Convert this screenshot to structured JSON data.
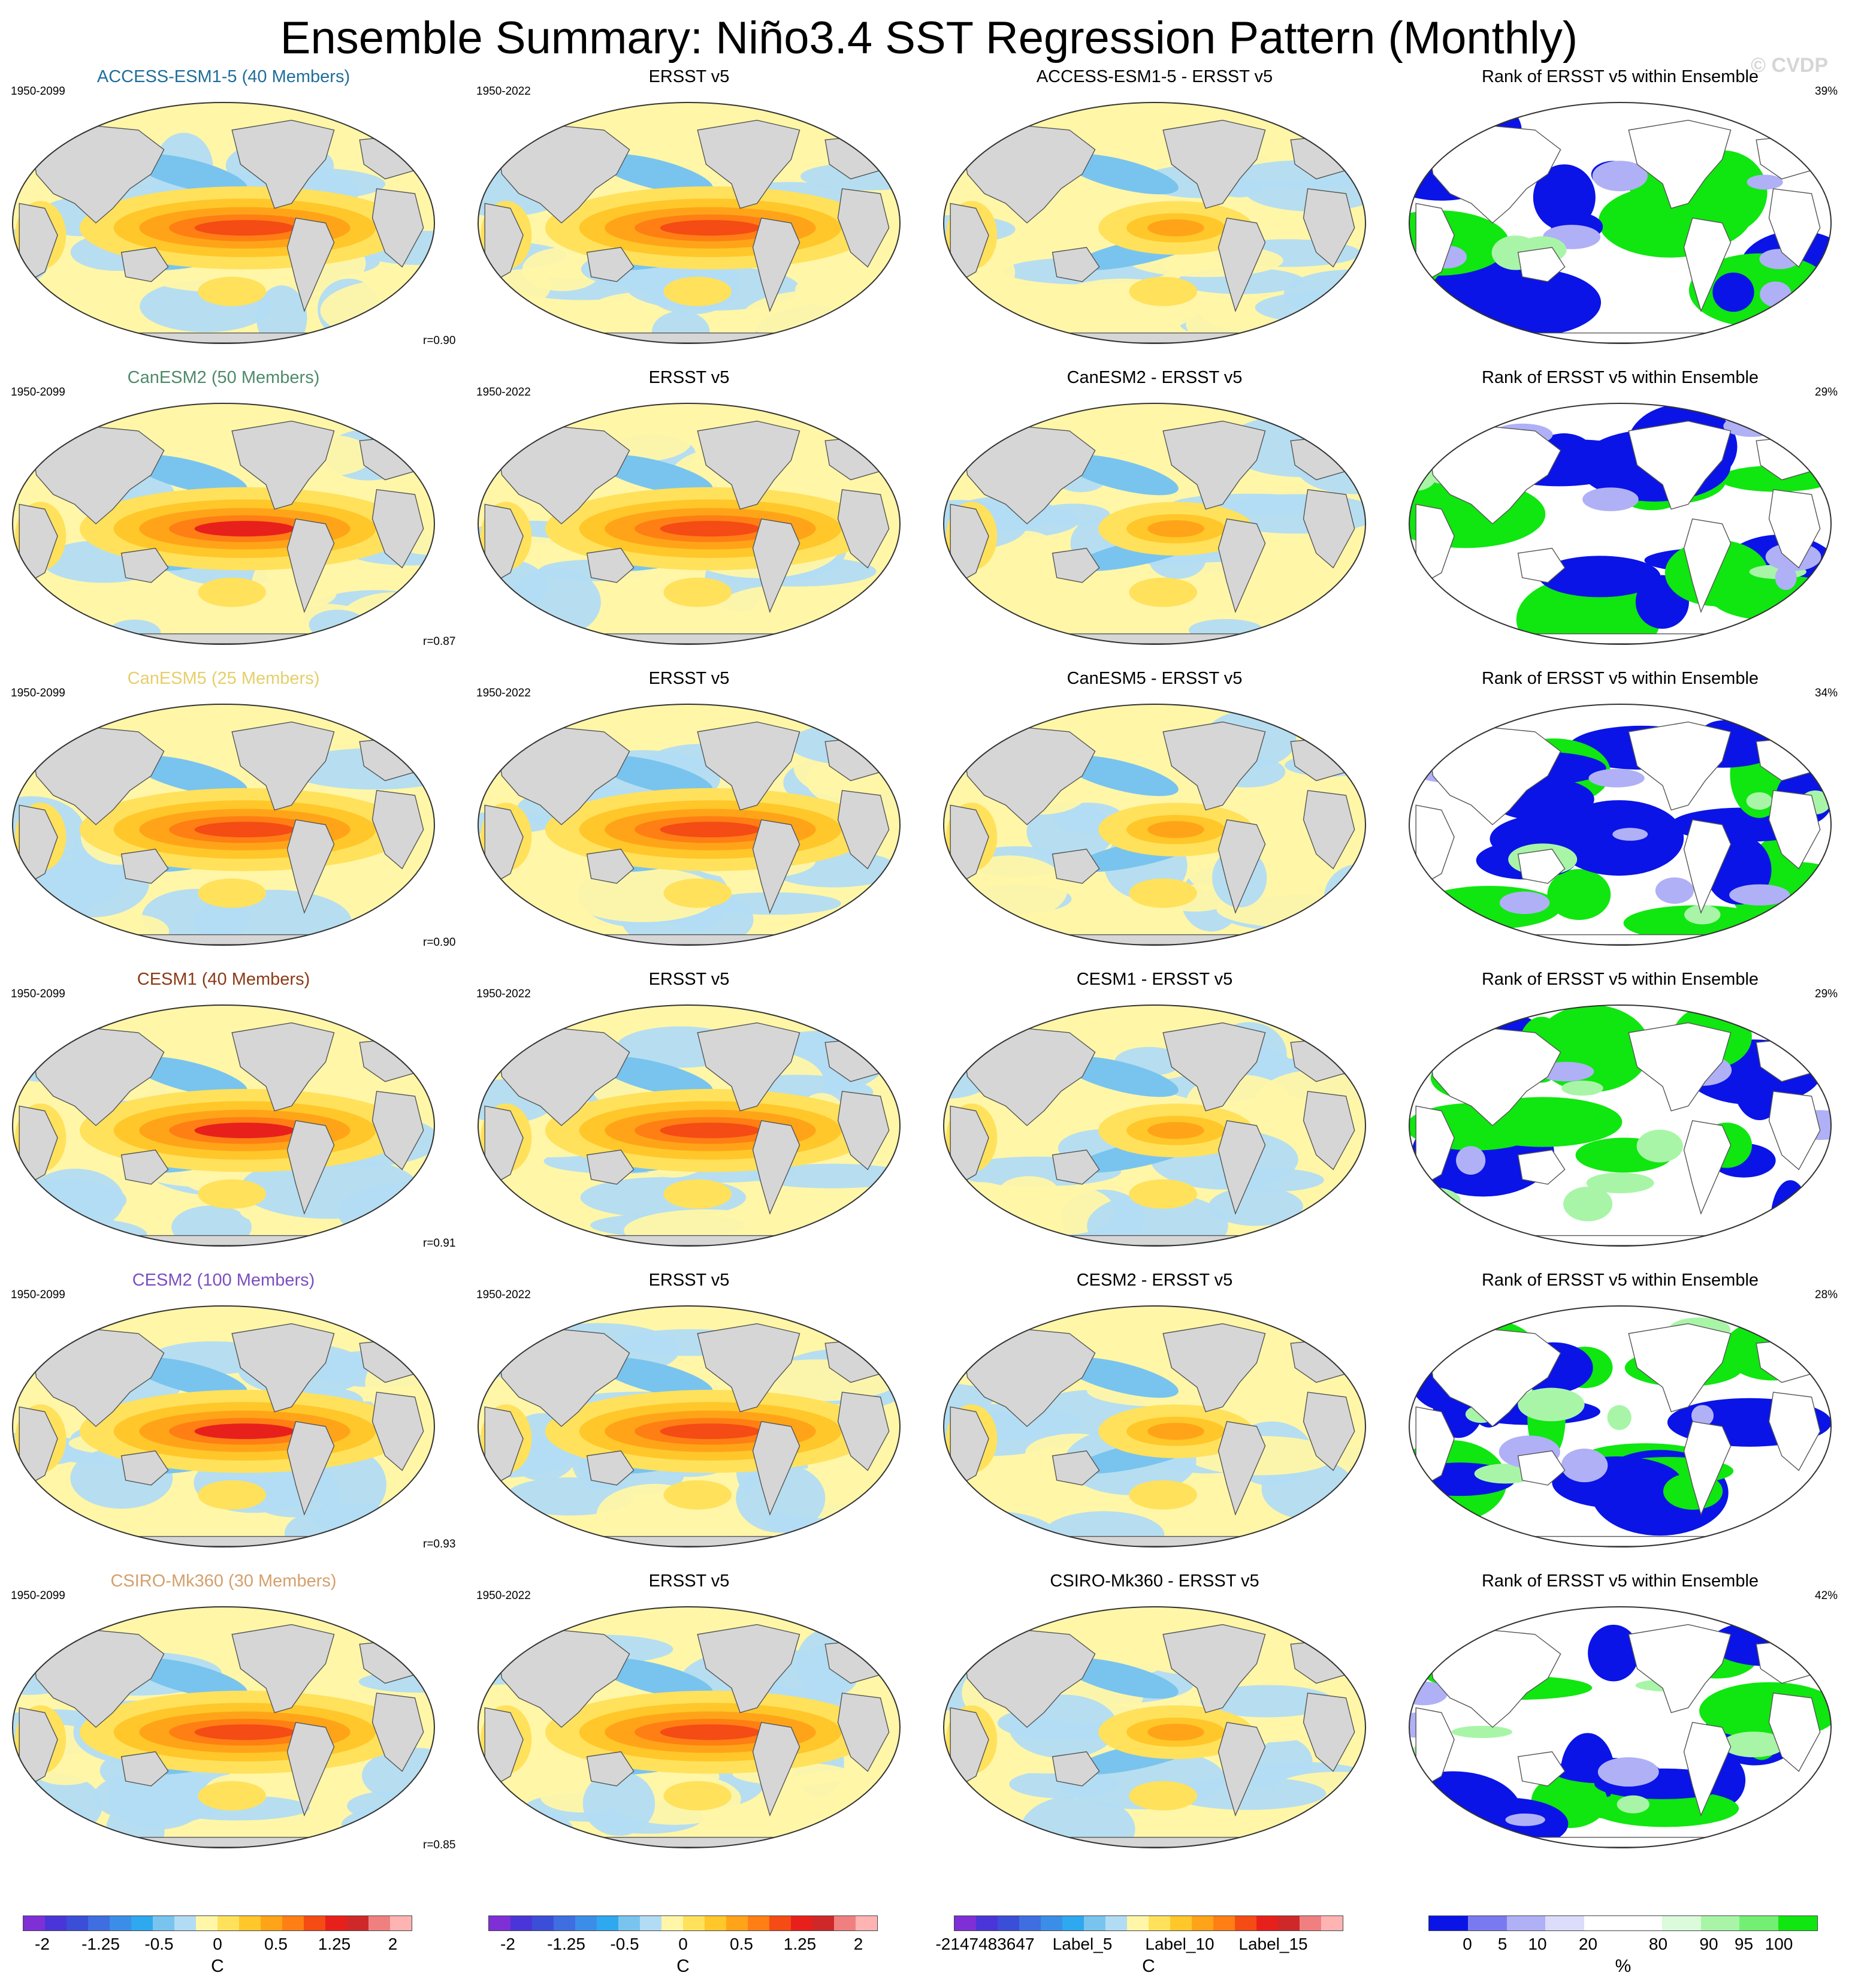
{
  "title": "Ensemble Summary: Niño3.4 SST Regression Pattern (Monthly)",
  "credit": "© CVDP",
  "obs_title": "ERSST v5",
  "rank_title": "Rank of ERSST v5 within Ensemble",
  "rows": [
    {
      "model_title": "ACCESS-ESM1-5 (40 Members)",
      "model_color": "#1f6e9a",
      "model_years": "1950-2099",
      "obs_years": "1950-2022",
      "diff_title": "ACCESS-ESM1-5 - ERSST v5",
      "r": "r=0.90",
      "rank_pct": "39%"
    },
    {
      "model_title": "CanESM2 (50 Members)",
      "model_color": "#4f8a6a",
      "model_years": "1950-2099",
      "obs_years": "1950-2022",
      "diff_title": "CanESM2 - ERSST v5",
      "r": "r=0.87",
      "rank_pct": "29%"
    },
    {
      "model_title": "CanESM5 (25 Members)",
      "model_color": "#e6cf6a",
      "model_years": "1950-2099",
      "obs_years": "1950-2022",
      "diff_title": "CanESM5 - ERSST v5",
      "r": "r=0.90",
      "rank_pct": "34%"
    },
    {
      "model_title": "CESM1 (40 Members)",
      "model_color": "#8b3a16",
      "model_years": "1950-2099",
      "obs_years": "1950-2022",
      "diff_title": "CESM1 - ERSST v5",
      "r": "r=0.91",
      "rank_pct": "29%"
    },
    {
      "model_title": "CESM2 (100 Members)",
      "model_color": "#7b4fc1",
      "model_years": "1950-2099",
      "obs_years": "1950-2022",
      "diff_title": "CESM2 - ERSST v5",
      "r": "r=0.93",
      "rank_pct": "28%"
    },
    {
      "model_title": "CSIRO-Mk360 (30 Members)",
      "model_color": "#d4a06c",
      "model_years": "1950-2099",
      "obs_years": "1950-2022",
      "diff_title": "CSIRO-Mk360 - ERSST v5",
      "r": "r=0.85",
      "rank_pct": "42%"
    }
  ],
  "colorbars": [
    {
      "labels": [
        "-2",
        "-1.25",
        "-0.5",
        "0",
        "0.5",
        "1.25",
        "2"
      ],
      "unit": "C",
      "colors": [
        "#7e2fd6",
        "#4a35d9",
        "#3a4ed8",
        "#3f6ee0",
        "#3b8ee8",
        "#2ea8ef",
        "#79c4ee",
        "#b2dcf3",
        "#fff6a8",
        "#ffe15c",
        "#ffc72a",
        "#ffa418",
        "#ff7f14",
        "#f54b14",
        "#e8201c",
        "#cf2828",
        "#f08080",
        "#ffb4b4"
      ]
    },
    {
      "labels": [
        "-2",
        "-1.25",
        "-0.5",
        "0",
        "0.5",
        "1.25",
        "2"
      ],
      "unit": "C",
      "colors": [
        "#7e2fd6",
        "#4a35d9",
        "#3a4ed8",
        "#3f6ee0",
        "#3b8ee8",
        "#2ea8ef",
        "#79c4ee",
        "#b2dcf3",
        "#fff6a8",
        "#ffe15c",
        "#ffc72a",
        "#ffa418",
        "#ff7f14",
        "#f54b14",
        "#e8201c",
        "#cf2828",
        "#f08080",
        "#ffb4b4"
      ]
    },
    {
      "labels": [
        "-2147483647",
        "Label_5",
        "Label_10",
        "Label_15"
      ],
      "unit": "C",
      "colors": [
        "#7e2fd6",
        "#4a35d9",
        "#3a4ed8",
        "#3f6ee0",
        "#3b8ee8",
        "#2ea8ef",
        "#79c4ee",
        "#b2dcf3",
        "#fff6a8",
        "#ffe15c",
        "#ffc72a",
        "#ffa418",
        "#ff7f14",
        "#f54b14",
        "#e8201c",
        "#cf2828",
        "#f08080",
        "#ffb4b4"
      ]
    },
    {
      "labels": [
        "0",
        "5",
        "10",
        "20",
        "80",
        "90",
        "95",
        "100"
      ],
      "unit": "%",
      "colors": [
        "#0a14e6",
        "#7a7af0",
        "#b0b0f6",
        "#dcdcfb",
        "#ffffff",
        "#ffffff",
        "#dbfbdb",
        "#a8f5a8",
        "#73ef73",
        "#10e610"
      ]
    }
  ]
}
